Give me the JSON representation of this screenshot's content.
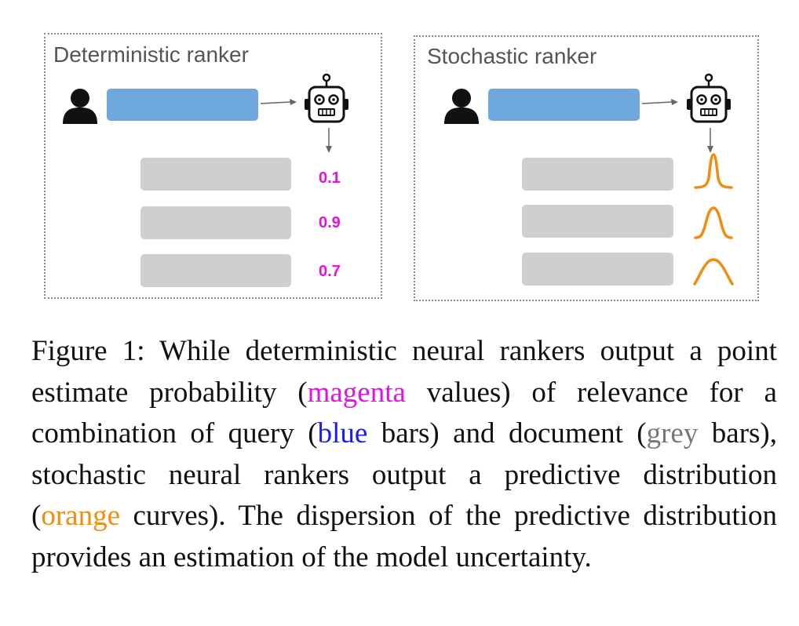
{
  "figure": {
    "panels": [
      {
        "title": "Deterministic ranker",
        "scores": [
          "0.1",
          "0.9",
          "0.7"
        ]
      },
      {
        "title": "Stochastic ranker",
        "distribution_widths": [
          "narrow",
          "medium",
          "wide"
        ]
      }
    ],
    "colors": {
      "query_bar": "#6fa8dc",
      "document_bar": "#cfcfcf",
      "score": "#e60fe6",
      "distribution": "#f28c0f"
    },
    "icons": [
      "user-icon",
      "robot-icon",
      "arrow-icon",
      "distribution-curve-icon"
    ]
  },
  "caption": {
    "label": "Figure 1:",
    "text_1": " While deterministic neural rankers output a point estimate probability (",
    "magenta_word": "magenta",
    "text_2": " values) of rele­vance for a combination of query (",
    "blue_word": "blue",
    "text_3": " bars) and doc­ument (",
    "grey_word": "grey",
    "text_4": " bars), stochastic neural rankers output a predictive distribution (",
    "orange_word": "orange",
    "text_5": " curves). The dispersion of the predictive distribution provides an estimation of the model uncertainty."
  }
}
